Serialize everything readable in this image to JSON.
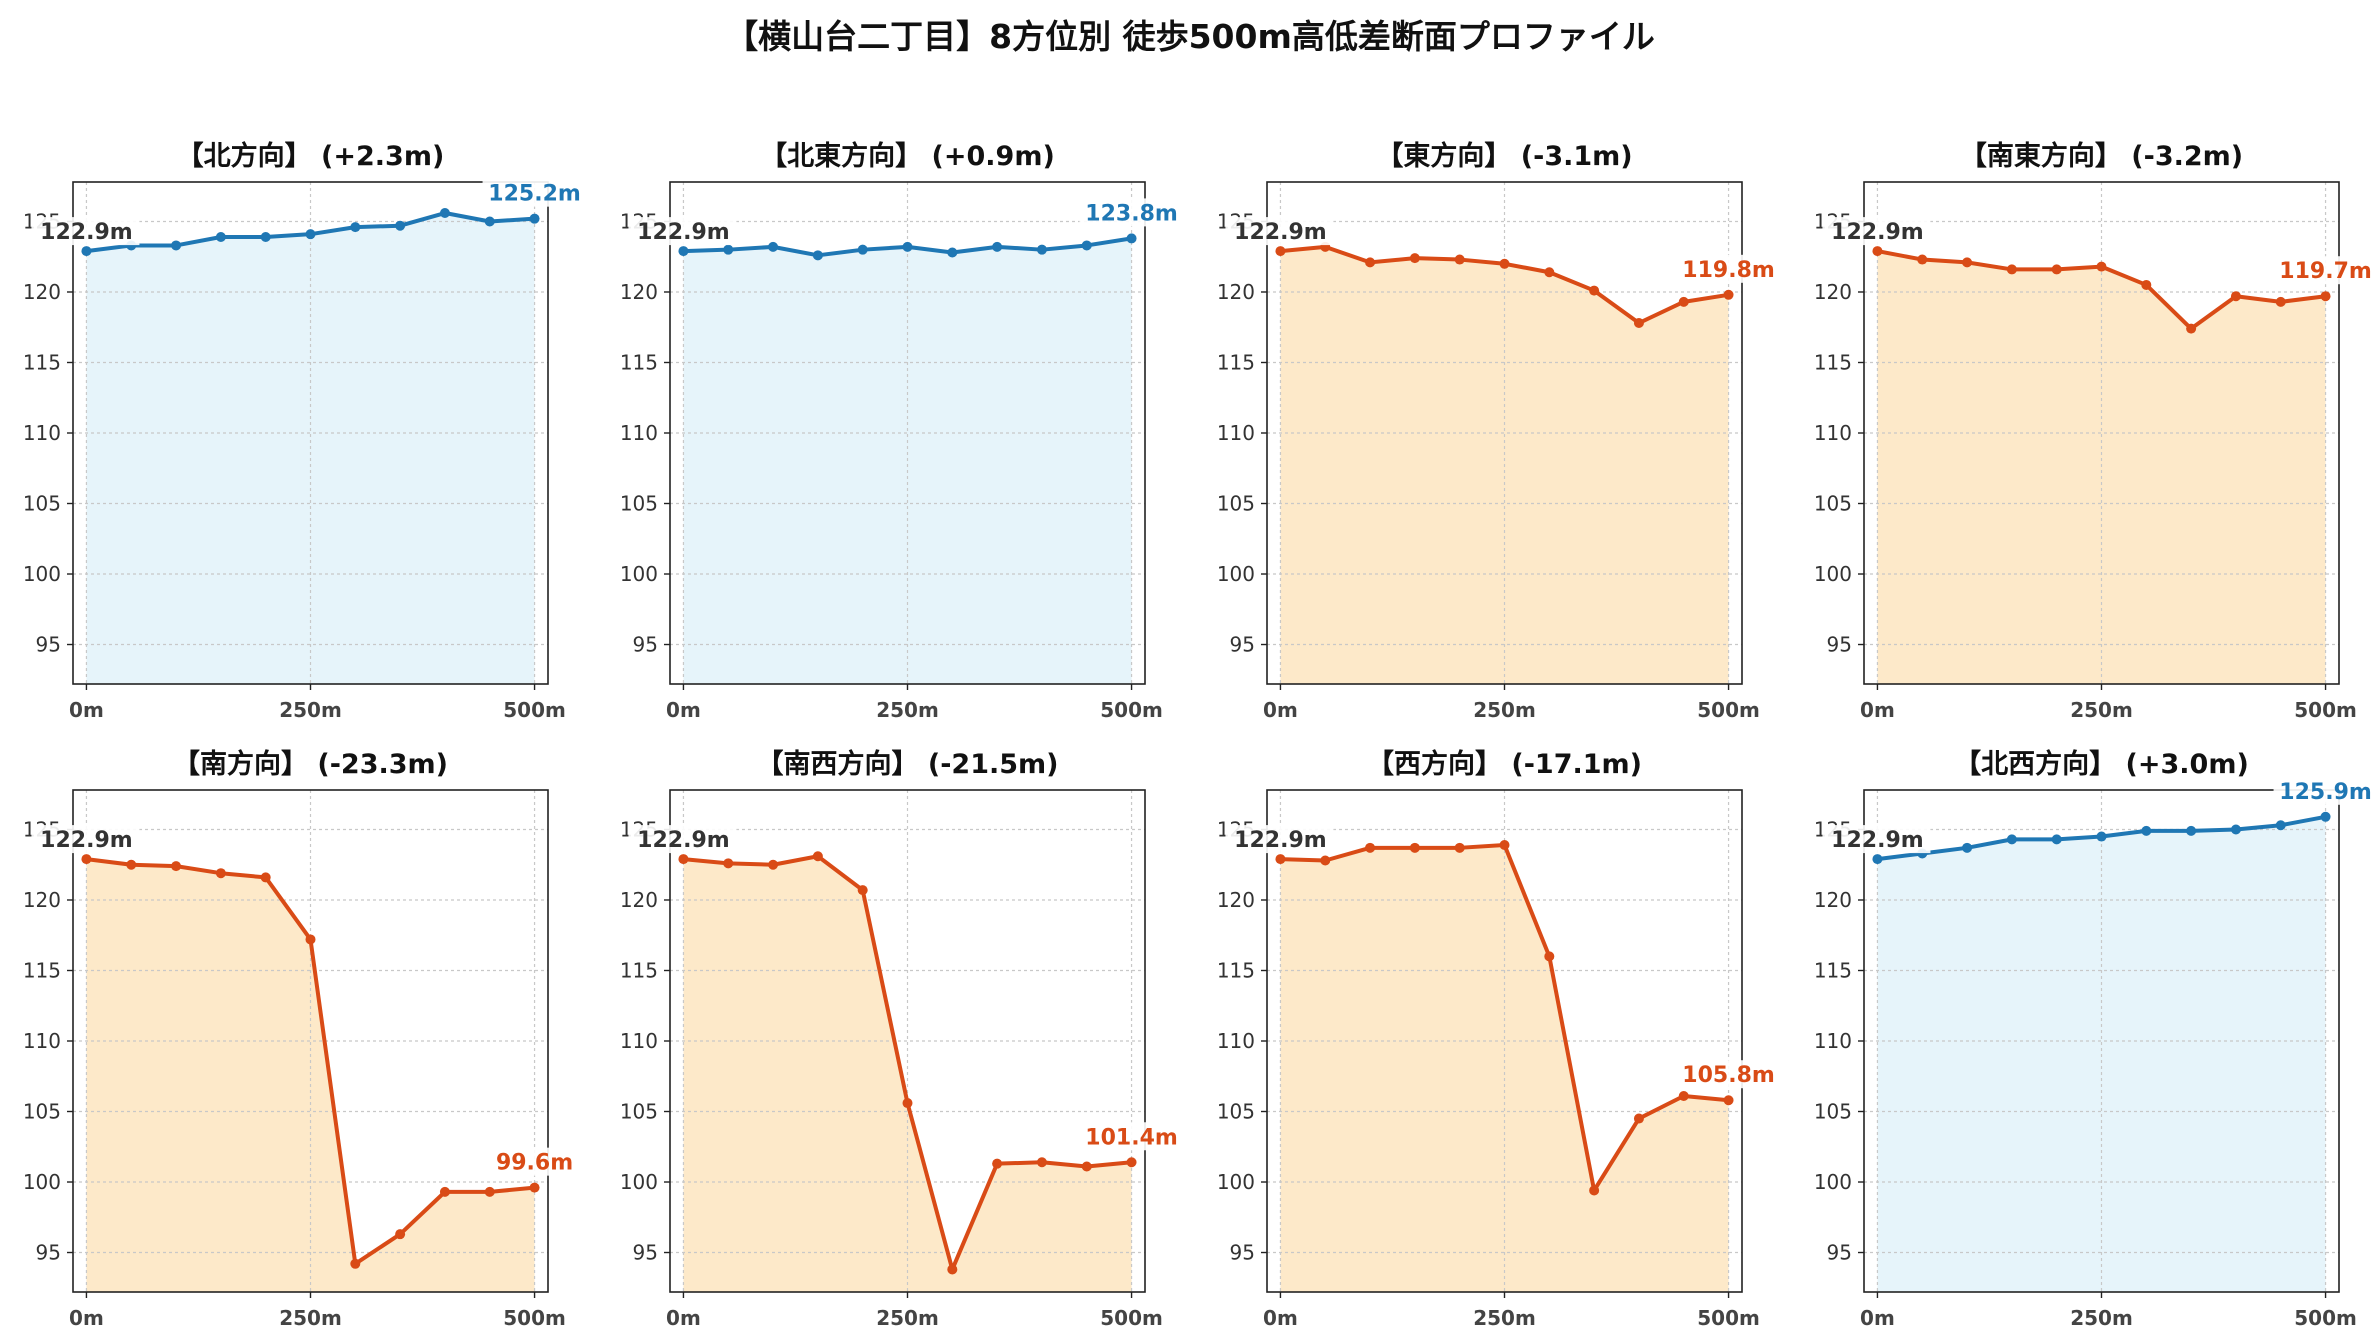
{
  "title": "【横山台二丁目】8方位別 徒歩500m高低差断面プロファイル",
  "colors": {
    "up_line": "#1f77b4",
    "up_fill": "#e6f4fa",
    "down_line": "#d94b16",
    "down_fill": "#fde9c9",
    "grid": "#c8c8c8",
    "label_start": "#333333"
  },
  "chart_data": [
    {
      "type": "area",
      "title": "【北方向】 (+2.3m)",
      "trend": "up",
      "x": [
        0,
        50,
        100,
        150,
        200,
        250,
        300,
        350,
        400,
        450,
        500
      ],
      "y": [
        122.9,
        123.3,
        123.3,
        123.9,
        123.9,
        124.1,
        124.6,
        124.7,
        125.6,
        125.0,
        125.2
      ],
      "xticks": [
        0,
        250,
        500
      ],
      "xtick_labels": [
        "0m",
        "250m",
        "500m"
      ],
      "yticks": [
        95,
        100,
        105,
        110,
        115,
        120,
        125
      ],
      "ytick_labels": [
        "95",
        "100",
        "105",
        "110",
        "115",
        "120",
        "125"
      ],
      "xlim": [
        -15,
        515
      ],
      "ylim": [
        92.2,
        127.8
      ],
      "start_label": "122.9m",
      "end_label": "125.2m",
      "grid": true
    },
    {
      "type": "area",
      "title": "【北東方向】 (+0.9m)",
      "trend": "up",
      "x": [
        0,
        50,
        100,
        150,
        200,
        250,
        300,
        350,
        400,
        450,
        500
      ],
      "y": [
        122.9,
        123.0,
        123.2,
        122.6,
        123.0,
        123.2,
        122.8,
        123.2,
        123.0,
        123.3,
        123.8
      ],
      "xticks": [
        0,
        250,
        500
      ],
      "xtick_labels": [
        "0m",
        "250m",
        "500m"
      ],
      "yticks": [
        95,
        100,
        105,
        110,
        115,
        120,
        125
      ],
      "ytick_labels": [
        "95",
        "100",
        "105",
        "110",
        "115",
        "120",
        "125"
      ],
      "xlim": [
        -15,
        515
      ],
      "ylim": [
        92.2,
        127.8
      ],
      "start_label": "122.9m",
      "end_label": "123.8m",
      "grid": true
    },
    {
      "type": "area",
      "title": "【東方向】 (-3.1m)",
      "trend": "down",
      "x": [
        0,
        50,
        100,
        150,
        200,
        250,
        300,
        350,
        400,
        450,
        500
      ],
      "y": [
        122.9,
        123.2,
        122.1,
        122.4,
        122.3,
        122.0,
        121.4,
        120.1,
        117.8,
        119.3,
        119.8
      ],
      "xticks": [
        0,
        250,
        500
      ],
      "xtick_labels": [
        "0m",
        "250m",
        "500m"
      ],
      "yticks": [
        95,
        100,
        105,
        110,
        115,
        120,
        125
      ],
      "ytick_labels": [
        "95",
        "100",
        "105",
        "110",
        "115",
        "120",
        "125"
      ],
      "xlim": [
        -15,
        515
      ],
      "ylim": [
        92.2,
        127.8
      ],
      "start_label": "122.9m",
      "end_label": "119.8m",
      "grid": true
    },
    {
      "type": "area",
      "title": "【南東方向】 (-3.2m)",
      "trend": "down",
      "x": [
        0,
        50,
        100,
        150,
        200,
        250,
        300,
        350,
        400,
        450,
        500
      ],
      "y": [
        122.9,
        122.3,
        122.1,
        121.6,
        121.6,
        121.8,
        120.5,
        117.4,
        119.7,
        119.3,
        119.7
      ],
      "xticks": [
        0,
        250,
        500
      ],
      "xtick_labels": [
        "0m",
        "250m",
        "500m"
      ],
      "yticks": [
        95,
        100,
        105,
        110,
        115,
        120,
        125
      ],
      "ytick_labels": [
        "95",
        "100",
        "105",
        "110",
        "115",
        "120",
        "125"
      ],
      "xlim": [
        -15,
        515
      ],
      "ylim": [
        92.2,
        127.8
      ],
      "start_label": "122.9m",
      "end_label": "119.7m",
      "grid": true
    },
    {
      "type": "area",
      "title": "【南方向】 (-23.3m)",
      "trend": "down",
      "x": [
        0,
        50,
        100,
        150,
        200,
        250,
        300,
        350,
        400,
        450,
        500
      ],
      "y": [
        122.9,
        122.5,
        122.4,
        121.9,
        121.6,
        117.2,
        94.2,
        96.3,
        99.3,
        99.3,
        99.6
      ],
      "xticks": [
        0,
        250,
        500
      ],
      "xtick_labels": [
        "0m",
        "250m",
        "500m"
      ],
      "yticks": [
        95,
        100,
        105,
        110,
        115,
        120,
        125
      ],
      "ytick_labels": [
        "95",
        "100",
        "105",
        "110",
        "115",
        "120",
        "125"
      ],
      "xlim": [
        -15,
        515
      ],
      "ylim": [
        92.2,
        127.8
      ],
      "start_label": "122.9m",
      "end_label": "99.6m",
      "grid": true
    },
    {
      "type": "area",
      "title": "【南西方向】 (-21.5m)",
      "trend": "down",
      "x": [
        0,
        50,
        100,
        150,
        200,
        250,
        300,
        350,
        400,
        450,
        500
      ],
      "y": [
        122.9,
        122.6,
        122.5,
        123.1,
        120.7,
        105.6,
        93.8,
        101.3,
        101.4,
        101.1,
        101.4
      ],
      "xticks": [
        0,
        250,
        500
      ],
      "xtick_labels": [
        "0m",
        "250m",
        "500m"
      ],
      "yticks": [
        95,
        100,
        105,
        110,
        115,
        120,
        125
      ],
      "ytick_labels": [
        "95",
        "100",
        "105",
        "110",
        "115",
        "120",
        "125"
      ],
      "xlim": [
        -15,
        515
      ],
      "ylim": [
        92.2,
        127.8
      ],
      "start_label": "122.9m",
      "end_label": "101.4m",
      "grid": true
    },
    {
      "type": "area",
      "title": "【西方向】 (-17.1m)",
      "trend": "down",
      "x": [
        0,
        50,
        100,
        150,
        200,
        250,
        300,
        350,
        400,
        450,
        500
      ],
      "y": [
        122.9,
        122.8,
        123.7,
        123.7,
        123.7,
        123.9,
        116.0,
        99.4,
        104.5,
        106.1,
        105.8
      ],
      "xticks": [
        0,
        250,
        500
      ],
      "xtick_labels": [
        "0m",
        "250m",
        "500m"
      ],
      "yticks": [
        95,
        100,
        105,
        110,
        115,
        120,
        125
      ],
      "ytick_labels": [
        "95",
        "100",
        "105",
        "110",
        "115",
        "120",
        "125"
      ],
      "xlim": [
        -15,
        515
      ],
      "ylim": [
        92.2,
        127.8
      ],
      "start_label": "122.9m",
      "end_label": "105.8m",
      "grid": true
    },
    {
      "type": "area",
      "title": "【北西方向】 (+3.0m)",
      "trend": "up",
      "x": [
        0,
        50,
        100,
        150,
        200,
        250,
        300,
        350,
        400,
        450,
        500
      ],
      "y": [
        122.9,
        123.3,
        123.7,
        124.3,
        124.3,
        124.5,
        124.9,
        124.9,
        125.0,
        125.3,
        125.9
      ],
      "xticks": [
        0,
        250,
        500
      ],
      "xtick_labels": [
        "0m",
        "250m",
        "500m"
      ],
      "yticks": [
        95,
        100,
        105,
        110,
        115,
        120,
        125
      ],
      "ytick_labels": [
        "95",
        "100",
        "105",
        "110",
        "115",
        "120",
        "125"
      ],
      "xlim": [
        -15,
        515
      ],
      "ylim": [
        92.2,
        127.8
      ],
      "start_label": "122.9m",
      "end_label": "125.9m",
      "grid": true
    }
  ]
}
